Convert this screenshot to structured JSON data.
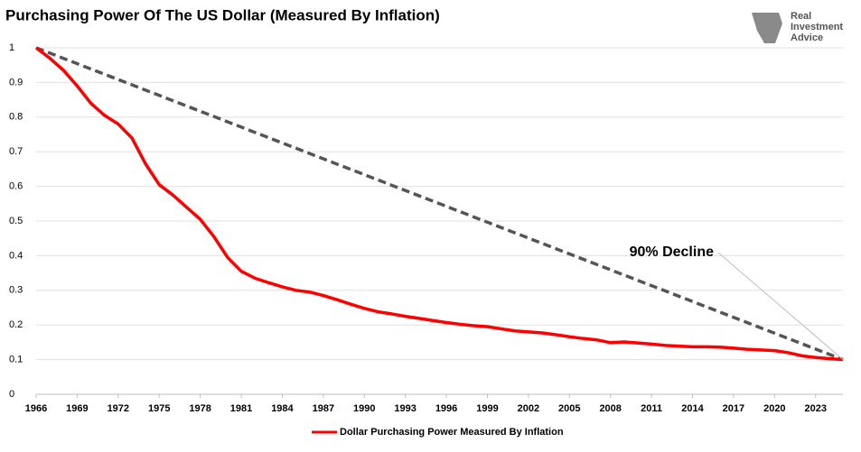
{
  "chart_data": {
    "type": "line",
    "title": "Purchasing Power Of The US Dollar (Measured By Inflation)",
    "x": [
      1966,
      1967,
      1968,
      1969,
      1970,
      1971,
      1972,
      1973,
      1974,
      1975,
      1976,
      1977,
      1978,
      1979,
      1980,
      1981,
      1982,
      1983,
      1984,
      1985,
      1986,
      1987,
      1988,
      1989,
      1990,
      1991,
      1992,
      1993,
      1994,
      1995,
      1996,
      1997,
      1998,
      1999,
      2000,
      2001,
      2002,
      2003,
      2004,
      2005,
      2006,
      2007,
      2008,
      2009,
      2010,
      2011,
      2012,
      2013,
      2014,
      2015,
      2016,
      2017,
      2018,
      2019,
      2020,
      2021,
      2022,
      2023,
      2024,
      2025
    ],
    "series": [
      {
        "name": "Dollar Purchasing Power Measured By Inflation",
        "color": "#ff0000",
        "values": [
          1.0,
          0.97,
          0.935,
          0.89,
          0.84,
          0.805,
          0.78,
          0.74,
          0.665,
          0.605,
          0.575,
          0.54,
          0.505,
          0.455,
          0.395,
          0.355,
          0.335,
          0.322,
          0.31,
          0.3,
          0.295,
          0.285,
          0.273,
          0.26,
          0.248,
          0.238,
          0.232,
          0.225,
          0.219,
          0.213,
          0.207,
          0.202,
          0.198,
          0.195,
          0.189,
          0.183,
          0.18,
          0.177,
          0.172,
          0.166,
          0.161,
          0.157,
          0.149,
          0.151,
          0.148,
          0.145,
          0.141,
          0.139,
          0.137,
          0.137,
          0.136,
          0.133,
          0.13,
          0.128,
          0.126,
          0.12,
          0.111,
          0.106,
          0.103,
          0.1
        ]
      }
    ],
    "trend": {
      "x": [
        1966,
        2025
      ],
      "values": [
        1,
        0.1
      ],
      "color": "#555555",
      "dashed": true
    },
    "annotation": "90% Decline",
    "xlim": [
      1966,
      2025
    ],
    "xticks": [
      1966,
      1969,
      1972,
      1975,
      1978,
      1981,
      1984,
      1987,
      1990,
      1993,
      1996,
      1999,
      2002,
      2005,
      2008,
      2011,
      2014,
      2017,
      2020,
      2023
    ],
    "ylim": [
      0,
      1
    ],
    "yticks": [
      0,
      0.1,
      0.2,
      0.3,
      0.4,
      0.5,
      0.6,
      0.7,
      0.8,
      0.9,
      1
    ],
    "grid": true,
    "legend": "bottom"
  },
  "logo": [
    "Real",
    "Investment",
    "Advice"
  ]
}
